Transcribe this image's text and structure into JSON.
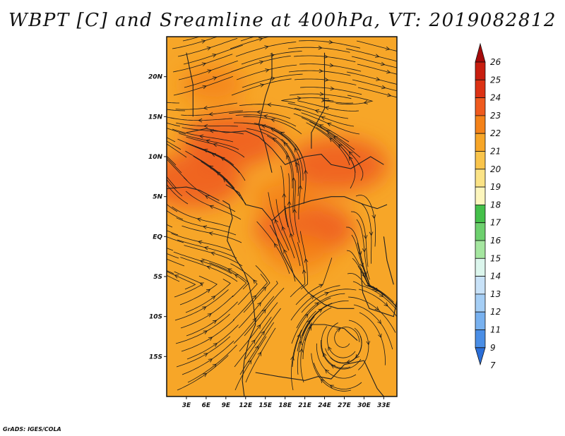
{
  "title": "WBPT [C] and Sreamline at 400hPa, VT: 2019082812",
  "credit": "GrADS: IGES/COLA",
  "map": {
    "lon_range": [
      0,
      35
    ],
    "lat_range": [
      -20,
      25
    ],
    "lon_ticks": [
      {
        "lon": 3,
        "label": "3E"
      },
      {
        "lon": 6,
        "label": "6E"
      },
      {
        "lon": 9,
        "label": "9E"
      },
      {
        "lon": 12,
        "label": "12E"
      },
      {
        "lon": 15,
        "label": "15E"
      },
      {
        "lon": 18,
        "label": "18E"
      },
      {
        "lon": 21,
        "label": "21E"
      },
      {
        "lon": 24,
        "label": "24E"
      },
      {
        "lon": 27,
        "label": "27E"
      },
      {
        "lon": 30,
        "label": "30E"
      },
      {
        "lon": 33,
        "label": "33E"
      }
    ],
    "lat_ticks": [
      {
        "lat": 20,
        "label": "20N"
      },
      {
        "lat": 15,
        "label": "15N"
      },
      {
        "lat": 10,
        "label": "10N"
      },
      {
        "lat": 5,
        "label": "5N"
      },
      {
        "lat": 0,
        "label": "EQ"
      },
      {
        "lat": -5,
        "label": "5S"
      },
      {
        "lat": -10,
        "label": "10S"
      },
      {
        "lat": -15,
        "label": "15S"
      }
    ],
    "field": "WBPT [C] at 400hPa",
    "warm_regions": [
      {
        "lon": 10,
        "lat": 12,
        "value": 23
      },
      {
        "lon": 4,
        "lat": 7,
        "value": 23
      },
      {
        "lon": 26,
        "lat": 9,
        "value": 23
      },
      {
        "lon": 21,
        "lat": 1,
        "value": 23
      },
      {
        "lon": 20,
        "lat": -2,
        "value": 22
      },
      {
        "lon": 7,
        "lat": 19,
        "value": 22
      },
      {
        "lon": 18,
        "lat": 5,
        "value": 22
      }
    ],
    "cyclone_center": {
      "lon": 27,
      "lat": -12.5
    }
  },
  "colorbar": {
    "levels": [
      "26",
      "25",
      "24",
      "23",
      "22",
      "21",
      "20",
      "19",
      "18",
      "17",
      "16",
      "15",
      "14",
      "13",
      "12",
      "11",
      "9",
      "7"
    ],
    "colors": [
      "#a50a0a",
      "#c81e0f",
      "#dc3214",
      "#ef5a1e",
      "#f48219",
      "#f7a628",
      "#f9c44b",
      "#fbe386",
      "#fdf6bd",
      "#44c04a",
      "#6dd06e",
      "#a5e6a0",
      "#dcf6ed",
      "#c8e2f8",
      "#a5cef5",
      "#78b1ef",
      "#4a8ee6",
      "#2a6ed8"
    ]
  }
}
